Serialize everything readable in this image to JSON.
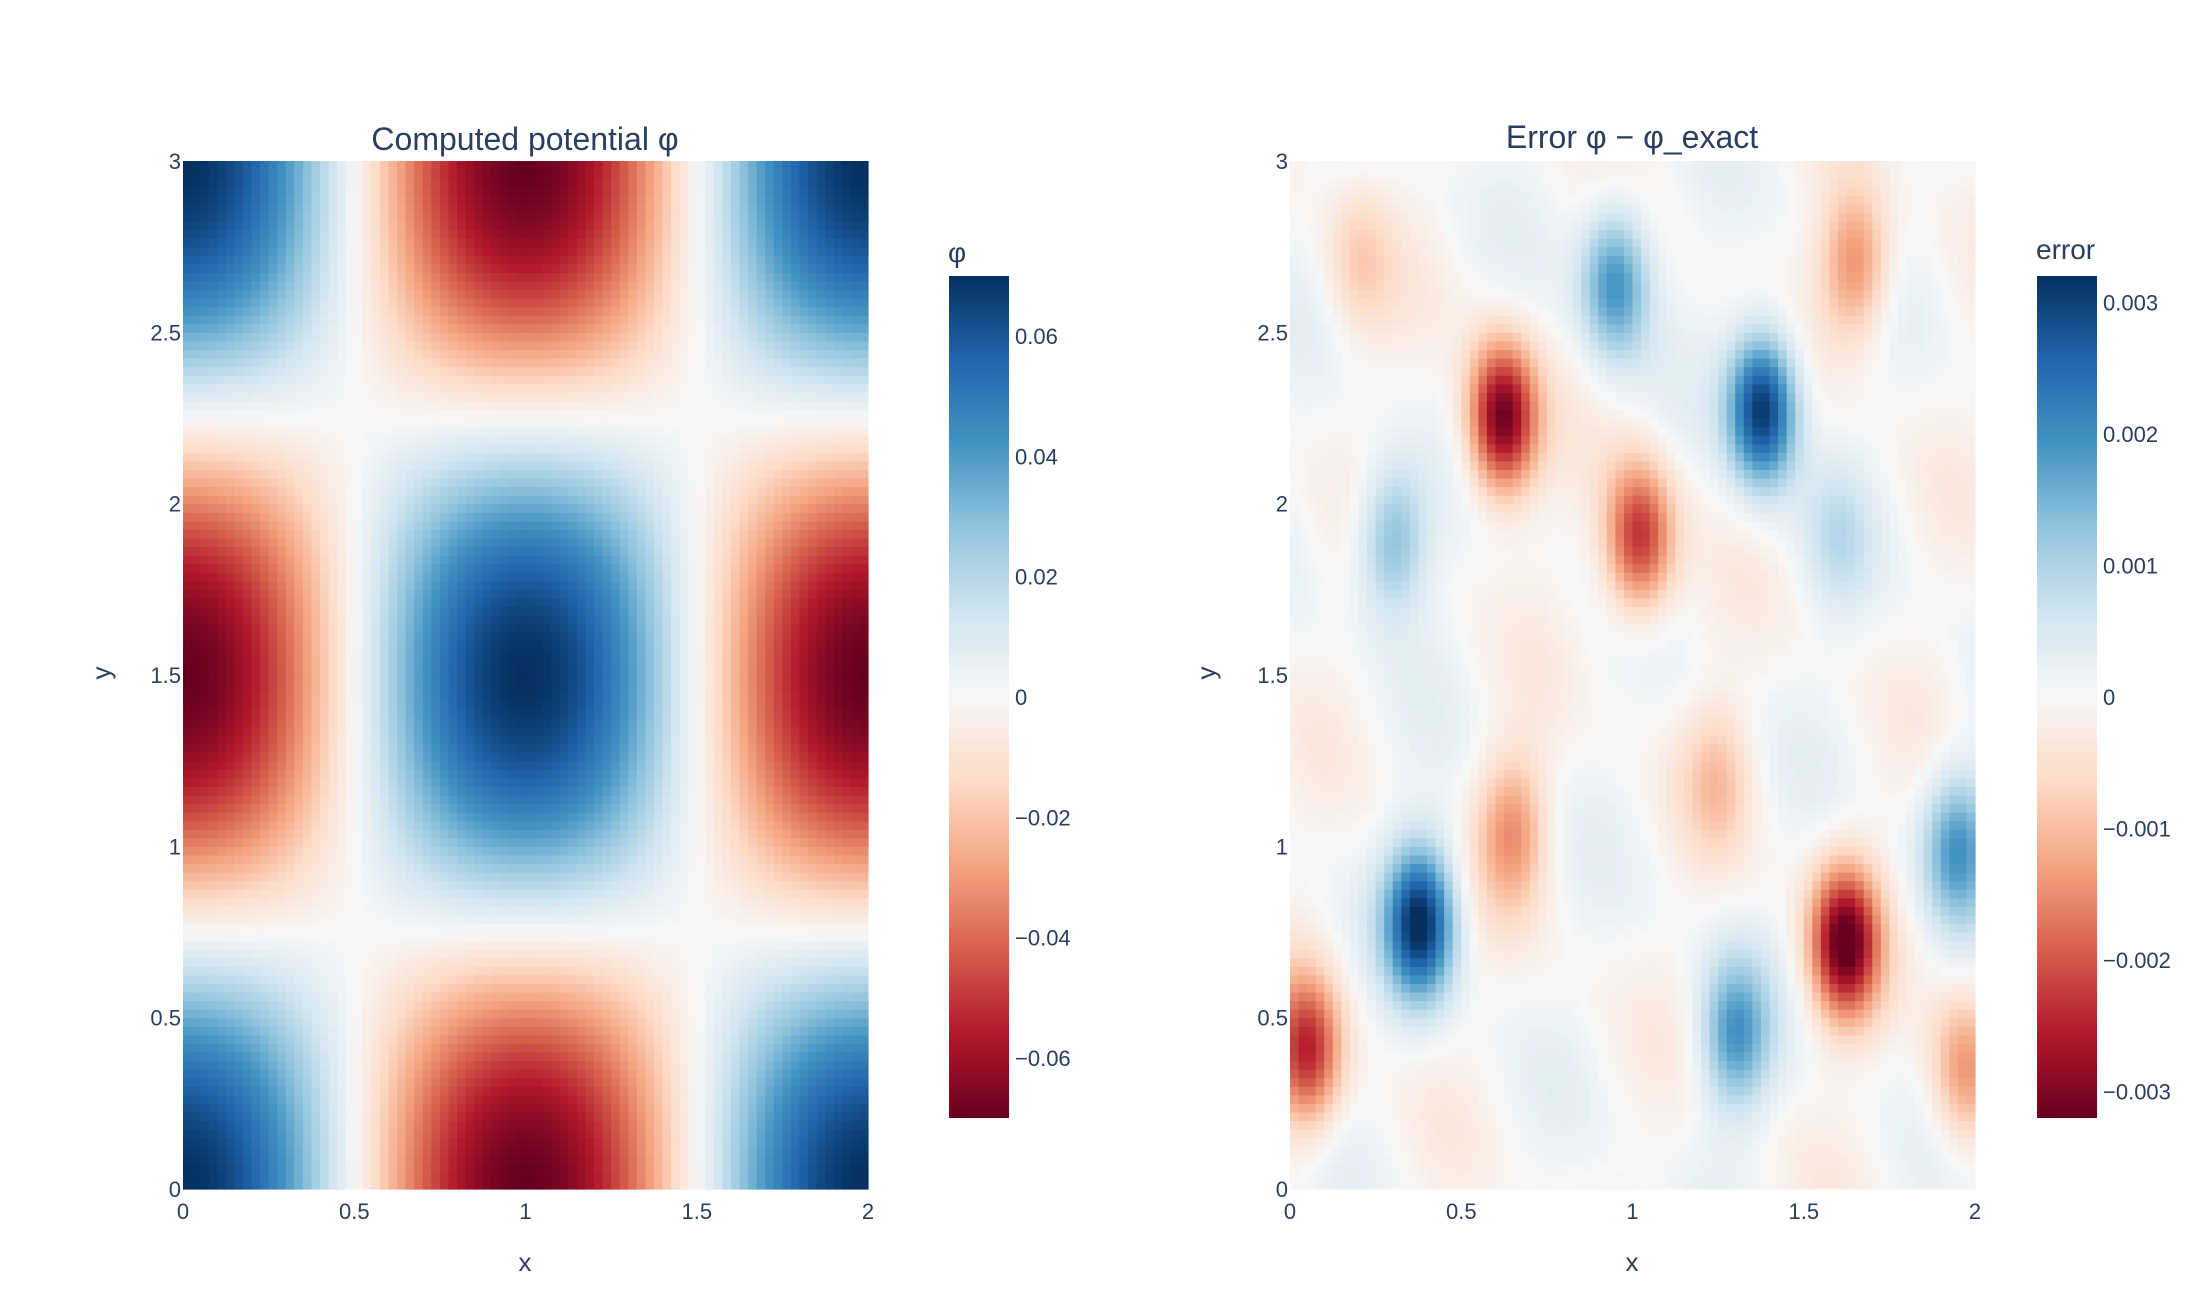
{
  "chart_data": [
    {
      "type": "heatmap",
      "title": "Computed potential φ",
      "xlabel": "x",
      "ylabel": "y",
      "xlim": [
        0,
        2
      ],
      "ylim": [
        0,
        3
      ],
      "xticks": [
        "0",
        "0.5",
        "1",
        "1.5",
        "2"
      ],
      "yticks": [
        "0",
        "0.5",
        "1",
        "1.5",
        "2",
        "2.5",
        "3"
      ],
      "colorscale": "RdBu",
      "colorbar": {
        "title": "φ",
        "range": [
          -0.07,
          0.07
        ],
        "ticks": [
          0.06,
          0.04,
          0.02,
          0,
          -0.02,
          -0.04,
          -0.06
        ],
        "tick_labels": [
          "0.06",
          "0.04",
          "0.02",
          "0",
          "−0.02",
          "−0.04",
          "−0.06"
        ]
      },
      "field": "phi = A*cos(pi*x)*cos(2*pi*y/3), peak |phi| ≈ 0.07",
      "amplitude": 0.07,
      "grid": false
    },
    {
      "type": "heatmap",
      "title": "Error φ − φ_exact",
      "xlabel": "x",
      "ylabel": "y",
      "xlim": [
        0,
        2
      ],
      "ylim": [
        0,
        3
      ],
      "xticks": [
        "0",
        "0.5",
        "1",
        "1.5",
        "2"
      ],
      "yticks": [
        "0",
        "0.5",
        "1",
        "1.5",
        "2",
        "2.5",
        "3"
      ],
      "colorscale": "RdBu",
      "colorbar": {
        "title": "error",
        "range": [
          -0.0032,
          0.0032
        ],
        "ticks": [
          0.003,
          0.002,
          0.001,
          0,
          -0.001,
          -0.002,
          -0.003
        ],
        "tick_labels": [
          "0.003",
          "0.002",
          "0.001",
          "0",
          "−0.001",
          "−0.002",
          "−0.003"
        ]
      },
      "amplitude": 0.0032,
      "blobs": [
        {
          "x": 0.62,
          "y": 2.25,
          "value": -0.0032
        },
        {
          "x": 1.38,
          "y": 2.28,
          "value": 0.0032
        },
        {
          "x": 0.95,
          "y": 2.65,
          "value": 0.002
        },
        {
          "x": 1.02,
          "y": 1.9,
          "value": -0.0024
        },
        {
          "x": 0.3,
          "y": 1.9,
          "value": 0.0015
        },
        {
          "x": 1.65,
          "y": 2.7,
          "value": -0.0016
        },
        {
          "x": 0.38,
          "y": 0.78,
          "value": 0.0032
        },
        {
          "x": 1.62,
          "y": 0.72,
          "value": -0.0032
        },
        {
          "x": 0.05,
          "y": 0.4,
          "value": -0.0024
        },
        {
          "x": 0.65,
          "y": 1.05,
          "value": -0.0014
        },
        {
          "x": 1.95,
          "y": 1.0,
          "value": 0.0018
        },
        {
          "x": 1.3,
          "y": 0.45,
          "value": 0.0018
        },
        {
          "x": 1.97,
          "y": 0.35,
          "value": -0.0014
        },
        {
          "x": 0.2,
          "y": 2.7,
          "value": -0.0007
        },
        {
          "x": 1.25,
          "y": 1.2,
          "value": -0.0008
        },
        {
          "x": 1.6,
          "y": 1.9,
          "value": 0.0006
        }
      ],
      "grid": false
    }
  ]
}
